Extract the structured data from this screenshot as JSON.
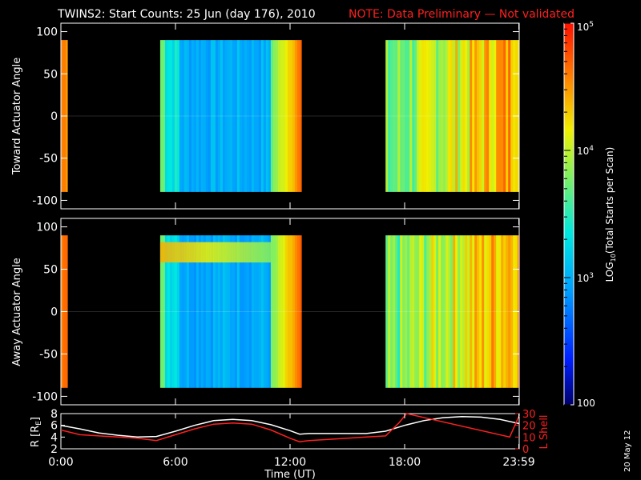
{
  "header": {
    "title": "TWINS2: Start Counts: 25 Jun (day 176), 2010",
    "note": "NOTE: Data Preliminary — Not validated"
  },
  "footer": {
    "date_stamp": "20 May 12"
  },
  "colors": {
    "background": "#000000",
    "note": "#ff2020",
    "r_line": "#ffffff",
    "lshell_line": "#ff2020"
  },
  "chart_data": [
    {
      "type": "heatmap",
      "ylabel": "Toward Actuator Angle",
      "ylim": [
        -110,
        110
      ],
      "yticks": [
        100,
        50,
        0,
        -50,
        -100
      ],
      "xlim": [
        0,
        24
      ],
      "data_y_range": [
        -90,
        90
      ],
      "segments": [
        {
          "x_start": 0.0,
          "x_end": 0.35,
          "level": "high"
        },
        {
          "x_start": 5.2,
          "x_end": 12.6,
          "level": "low"
        },
        {
          "x_start": 17.0,
          "x_end": 24.0,
          "level": "rising"
        }
      ]
    },
    {
      "type": "heatmap",
      "ylabel": "Away Actuator Angle",
      "ylim": [
        -110,
        110
      ],
      "yticks": [
        100,
        50,
        0,
        -50,
        -100
      ],
      "xlim": [
        0,
        24
      ],
      "data_y_range": [
        -90,
        90
      ],
      "segments": [
        {
          "x_start": 0.0,
          "x_end": 0.35,
          "level": "high"
        },
        {
          "x_start": 5.2,
          "x_end": 12.6,
          "level": "low"
        },
        {
          "x_start": 17.0,
          "x_end": 24.0,
          "level": "rising"
        }
      ]
    },
    {
      "type": "line",
      "xlabel": "Time (UT)",
      "xticks": [
        "0:00",
        "6:00",
        "12:00",
        "18:00",
        "23:59"
      ],
      "xtick_values": [
        0,
        6,
        12,
        18,
        23.98
      ],
      "xlim": [
        0,
        24
      ],
      "ylabel": "R [R",
      "ylabel_sub": "E",
      "ylabel_end": "]",
      "ylim": [
        2,
        8
      ],
      "yticks": [
        2,
        4,
        6,
        8
      ],
      "y2label": "L Shell",
      "y2lim": [
        0,
        30
      ],
      "y2ticks": [
        0,
        10,
        20,
        30
      ],
      "series": [
        {
          "color": "#ffffff",
          "x": [
            0,
            1,
            2,
            3,
            4,
            5,
            6,
            7,
            8,
            9,
            10,
            11,
            12,
            12.5,
            13,
            14,
            15,
            16,
            17,
            18,
            19,
            20,
            21,
            22,
            23,
            24
          ],
          "y": [
            6.0,
            5.4,
            4.7,
            4.3,
            4.0,
            4.1,
            5.0,
            6.0,
            6.8,
            7.0,
            6.8,
            6.1,
            5.1,
            4.5,
            4.6,
            4.6,
            4.6,
            4.6,
            5.0,
            6.0,
            6.8,
            7.3,
            7.5,
            7.4,
            7.0,
            6.3
          ]
        },
        {
          "color": "#ff2020",
          "axis": "right",
          "x": [
            0,
            1,
            2,
            3,
            4,
            5,
            6,
            7,
            8,
            9,
            10,
            11,
            12,
            12.5,
            13,
            14,
            15,
            16,
            17,
            17.7,
            18.1,
            23.5,
            23.99
          ],
          "y": [
            16,
            12,
            11,
            10,
            9,
            7,
            12,
            17,
            21,
            22,
            21,
            16,
            9,
            6,
            7,
            8,
            9,
            10,
            11,
            22,
            30,
            10,
            28
          ]
        }
      ]
    }
  ],
  "colorbar": {
    "label_prefix": "LOG",
    "label_sub": "10",
    "label_suffix": "(Total Starts per Scan)",
    "ticks": [
      {
        "value": 100,
        "label": "100"
      },
      {
        "value": 1000,
        "label": "10",
        "sup": "3"
      },
      {
        "value": 10000,
        "label": "10",
        "sup": "4"
      },
      {
        "value": 100000,
        "label": "10",
        "sup": "5"
      }
    ],
    "range": [
      100,
      100000
    ],
    "scale": "log"
  }
}
